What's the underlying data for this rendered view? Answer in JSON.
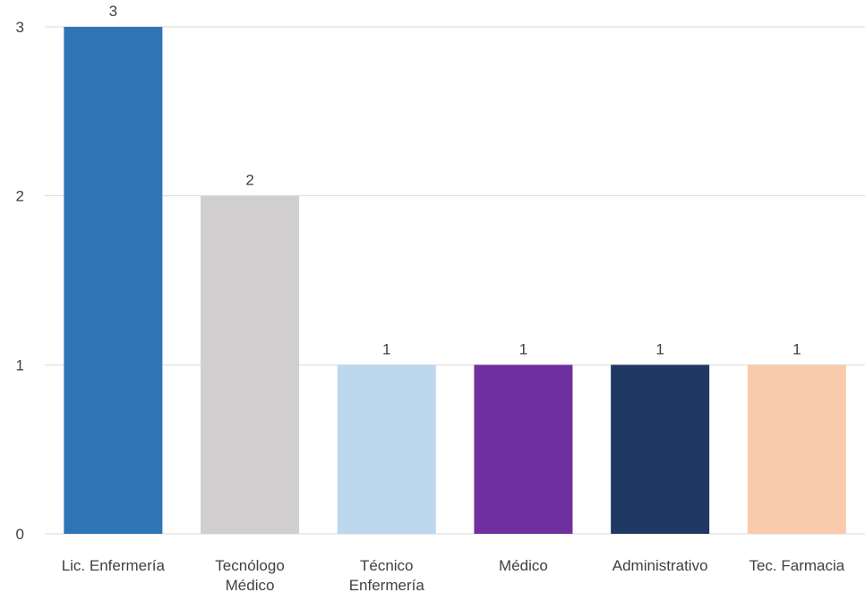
{
  "chart_data": {
    "type": "bar",
    "title": "",
    "xlabel": "",
    "ylabel": "",
    "ylim": [
      0,
      3
    ],
    "yticks": [
      0,
      1,
      2,
      3
    ],
    "grid": true,
    "legend": "none",
    "categories": [
      [
        "Lic. Enfermería"
      ],
      [
        "Tecnólogo",
        "Médico"
      ],
      [
        "Técnico",
        "Enfermería"
      ],
      [
        "Médico"
      ],
      [
        "Administrativo"
      ],
      [
        "Tec. Farmacia"
      ]
    ],
    "values": [
      3,
      2,
      1,
      1,
      1,
      1
    ],
    "data_labels": [
      "3",
      "2",
      "1",
      "1",
      "1",
      "1"
    ],
    "colors": [
      "#2e75b6",
      "#d0cece",
      "#bdd7ee",
      "#7030a0",
      "#203864",
      "#f8cbad"
    ]
  }
}
